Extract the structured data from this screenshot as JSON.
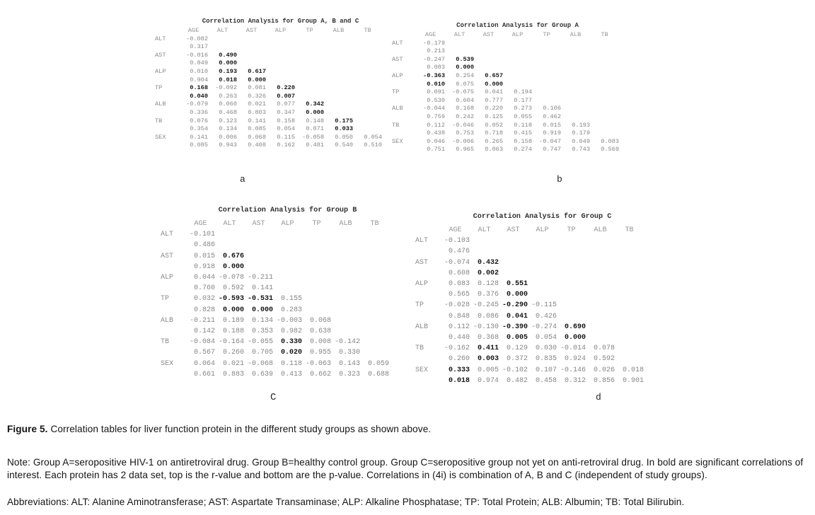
{
  "figure": {
    "caption_label": "Figure 5.",
    "caption_text": " Correlation tables for liver function protein in the different study groups as shown above.",
    "note": "Note: Group A=seropositive HIV-1 on antiretroviral drug. Group B=healthy control group. Group C=seropositive group not yet on anti-retroviral drug. In bold are significant correlations of interest. Each protein has 2 data set, top is the r-value and bottom are the p-value. Correlations in (4i) is combination of A, B and C (independent of study groups).",
    "abbreviations": "Abbreviations: ALT: Alanine Aminotransferase; AST: Aspartate Transaminase; ALP: Alkaline Phosphatase; TP: Total Protein; ALB: Albumin; TB: Total Bilirubin."
  },
  "bold_marker": "!",
  "colors": {
    "significant_value": "#141414",
    "normal_value": "#858585",
    "caption_text": "#141414"
  },
  "tables": [
    {
      "id": "a",
      "label": "a",
      "title": "Correlation Analysis for Group A, B and C",
      "columns": [
        "AGE",
        "ALT",
        "AST",
        "ALP",
        "TP",
        "ALB",
        "TB"
      ],
      "rows": [
        {
          "protein": "ALT",
          "r": [
            "-0.082"
          ],
          "p": [
            "0.317"
          ]
        },
        {
          "protein": "AST",
          "r": [
            "-0.016",
            "!0.490"
          ],
          "p": [
            "0.849",
            "!0.000"
          ]
        },
        {
          "protein": "ALP",
          "r": [
            "0.010",
            "!0.193",
            "!0.617"
          ],
          "p": [
            "0.904",
            "!0.018",
            "!0.000"
          ]
        },
        {
          "protein": "TP",
          "r": [
            "!0.168",
            "-0.092",
            "0.081",
            "!0.220"
          ],
          "p": [
            "!0.040",
            "0.263",
            "0.326",
            "!0.007"
          ]
        },
        {
          "protein": "ALB",
          "r": [
            "-0.079",
            "0.060",
            "0.021",
            "0.077",
            "!0.342"
          ],
          "p": [
            "0.336",
            "0.468",
            "0.803",
            "0.347",
            "!0.000"
          ]
        },
        {
          "protein": "TB",
          "r": [
            "0.076",
            "0.123",
            "0.141",
            "0.158",
            "0.148",
            "!0.175"
          ],
          "p": [
            "0.354",
            "0.134",
            "0.085",
            "0.054",
            "0.071",
            "!0.033"
          ]
        },
        {
          "protein": "SEX",
          "r": [
            "0.141",
            "0.006",
            "0.068",
            "0.115",
            "-0.058",
            "0.050",
            "0.054"
          ],
          "p": [
            "0.085",
            "0.943",
            "0.408",
            "0.162",
            "0.481",
            "0.540",
            "0.510"
          ]
        }
      ]
    },
    {
      "id": "b",
      "label": "b",
      "title": "Correlation Analysis for Group A",
      "columns": [
        "AGE",
        "ALT",
        "AST",
        "ALP",
        "TP",
        "ALB",
        "TB"
      ],
      "rows": [
        {
          "protein": "ALT",
          "r": [
            "-0.179"
          ],
          "p": [
            "0.213"
          ]
        },
        {
          "protein": "AST",
          "r": [
            "-0.247",
            "!0.539"
          ],
          "p": [
            "0.083",
            "!0.000"
          ]
        },
        {
          "protein": "ALP",
          "r": [
            "!-0.363",
            "0.254",
            "!0.657"
          ],
          "p": [
            "!0.010",
            "0.075",
            "!0.000"
          ]
        },
        {
          "protein": "TP",
          "r": [
            "0.091",
            "-0.075",
            "0.041",
            "0.194"
          ],
          "p": [
            "0.530",
            "0.604",
            "0.777",
            "0.177"
          ]
        },
        {
          "protein": "ALB",
          "r": [
            "-0.044",
            "0.168",
            "0.220",
            "0.273",
            "0.106"
          ],
          "p": [
            "0.759",
            "0.242",
            "0.125",
            "0.055",
            "0.462"
          ]
        },
        {
          "protein": "TB",
          "r": [
            "0.112",
            "-0.046",
            "0.052",
            "0.118",
            "0.015",
            "0.193"
          ],
          "p": [
            "0.438",
            "0.753",
            "0.718",
            "0.415",
            "0.919",
            "0.179"
          ]
        },
        {
          "protein": "SEX",
          "r": [
            "0.046",
            "-0.006",
            "0.265",
            "0.158",
            "-0.047",
            "0.049",
            "0.083"
          ],
          "p": [
            "0.751",
            "0.965",
            "0.063",
            "0.274",
            "0.747",
            "0.743",
            "0.569"
          ]
        }
      ]
    },
    {
      "id": "c",
      "label": "C",
      "title": "Correlation Analysis for Group B",
      "columns": [
        "AGE",
        "ALT",
        "AST",
        "ALP",
        "TP",
        "ALB",
        "TB"
      ],
      "rows": [
        {
          "protein": "ALT",
          "r": [
            "-0.101"
          ],
          "p": [
            "0.486"
          ]
        },
        {
          "protein": "AST",
          "r": [
            "0.015",
            "!0.676"
          ],
          "p": [
            "0.918",
            "!0.000"
          ]
        },
        {
          "protein": "ALP",
          "r": [
            "0.044",
            "-0.078",
            "-0.211"
          ],
          "p": [
            "0.760",
            "0.592",
            "0.141"
          ]
        },
        {
          "protein": "TP",
          "r": [
            "0.032",
            "!-0.593",
            "!-0.531",
            "0.155"
          ],
          "p": [
            "0.828",
            "!0.000",
            "!0.000",
            "0.283"
          ]
        },
        {
          "protein": "ALB",
          "r": [
            "-0.211",
            "0.189",
            "0.134",
            "-0.003",
            "0.068"
          ],
          "p": [
            "0.142",
            "0.188",
            "0.353",
            "0.982",
            "0.638"
          ]
        },
        {
          "protein": "TB",
          "r": [
            "-0.084",
            "-0.164",
            "-0.055",
            "!0.330",
            "0.008",
            "-0.142"
          ],
          "p": [
            "0.567",
            "0.260",
            "0.705",
            "!0.020",
            "0.955",
            "0.330"
          ]
        },
        {
          "protein": "SEX",
          "r": [
            "0.064",
            "0.021",
            "-0.068",
            "0.118",
            "-0.063",
            "0.143",
            "0.059"
          ],
          "p": [
            "0.661",
            "0.883",
            "0.639",
            "0.413",
            "0.662",
            "0.323",
            "0.688"
          ]
        }
      ]
    },
    {
      "id": "d",
      "label": "d",
      "title": "Correlation Analysis for Group C",
      "columns": [
        "AGE",
        "ALT",
        "AST",
        "ALP",
        "TP",
        "ALB",
        "TB"
      ],
      "rows": [
        {
          "protein": "ALT",
          "r": [
            "-0.103"
          ],
          "p": [
            "0.476"
          ]
        },
        {
          "protein": "AST",
          "r": [
            "-0.074",
            "!0.432"
          ],
          "p": [
            "0.608",
            "!0.002"
          ]
        },
        {
          "protein": "ALP",
          "r": [
            "0.083",
            "0.128",
            "!0.551"
          ],
          "p": [
            "0.565",
            "0.376",
            "!0.000"
          ]
        },
        {
          "protein": "TP",
          "r": [
            "-0.028",
            "-0.245",
            "!-0.290",
            "-0.115"
          ],
          "p": [
            "0.848",
            "0.086",
            "!0.041",
            "0.426"
          ]
        },
        {
          "protein": "ALB",
          "r": [
            "0.112",
            "-0.130",
            "!-0.390",
            "-0.274",
            "!0.690"
          ],
          "p": [
            "0.440",
            "0.368",
            "!0.005",
            "0.054",
            "!0.000"
          ]
        },
        {
          "protein": "TB",
          "r": [
            "-0.162",
            "!0.411",
            "0.129",
            "0.030",
            "-0.014",
            "0.078"
          ],
          "p": [
            "0.260",
            "!0.003",
            "0.372",
            "0.835",
            "0.924",
            "0.592"
          ]
        },
        {
          "protein": "SEX",
          "r": [
            "!0.333",
            "0.005",
            "-0.102",
            "0.107",
            "-0.146",
            "0.026",
            "0.018"
          ],
          "p": [
            "!0.018",
            "0.974",
            "0.482",
            "0.458",
            "0.312",
            "0.856",
            "0.901"
          ]
        }
      ]
    }
  ]
}
